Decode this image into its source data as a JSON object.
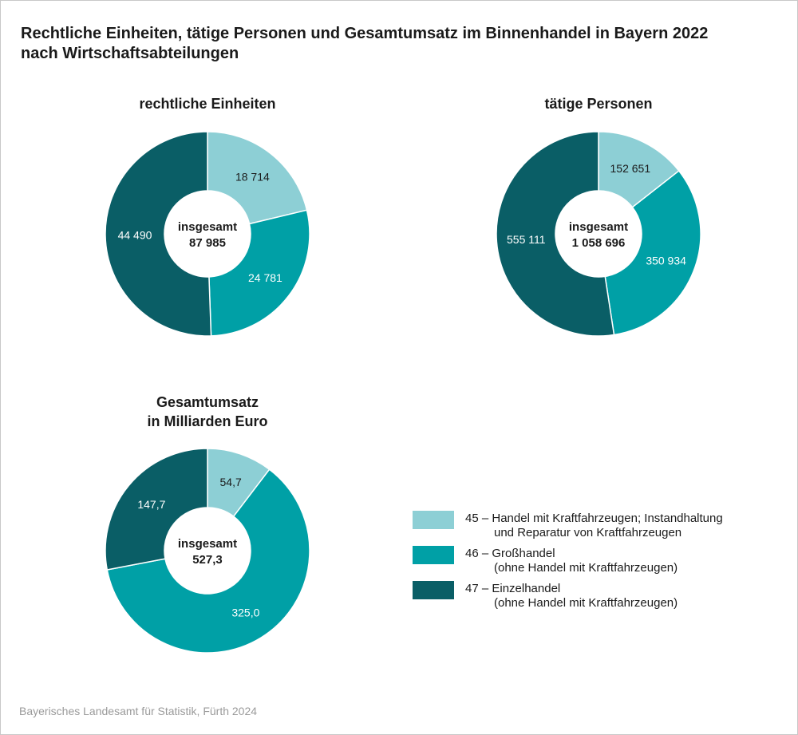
{
  "title": {
    "line1": "Rechtliche Einheiten, tätige Personen und Gesamtumsatz im Binnenhandel in Bayern 2022",
    "line2": "nach Wirtschaftsabteilungen"
  },
  "colors": {
    "c45": "#8dcfd5",
    "c46": "#00a0a6",
    "c47": "#0a5e66"
  },
  "chart_data": [
    {
      "type": "pie",
      "title": "rechtliche Einheiten",
      "center_label": "insgesamt",
      "total_label": "87 985",
      "categories": [
        "45",
        "46",
        "47"
      ],
      "values": [
        18714,
        24781,
        44490
      ],
      "value_labels": [
        "18 714",
        "24 781",
        "44 490"
      ]
    },
    {
      "type": "pie",
      "title": "tätige Personen",
      "center_label": "insgesamt",
      "total_label": "1 058 696",
      "categories": [
        "45",
        "46",
        "47"
      ],
      "values": [
        152651,
        350934,
        555111
      ],
      "value_labels": [
        "152 651",
        "350 934",
        "555 111"
      ]
    },
    {
      "type": "pie",
      "title": "Gesamtumsatz",
      "title_line2": "in Milliarden Euro",
      "center_label": "insgesamt",
      "total_label": "527,3",
      "categories": [
        "45",
        "46",
        "47"
      ],
      "values": [
        54.7,
        325.0,
        147.7
      ],
      "value_labels": [
        "54,7",
        "325,0",
        "147,7"
      ]
    }
  ],
  "legend": [
    {
      "key": "c45",
      "line1": "45 – Handel mit Kraftfahrzeugen; Instandhaltung",
      "line2": "und Reparatur von Kraftfahrzeugen"
    },
    {
      "key": "c46",
      "line1": "46 – Großhandel",
      "line2": "(ohne Handel mit Kraftfahrzeugen)"
    },
    {
      "key": "c47",
      "line1": "47 – Einzelhandel",
      "line2": "(ohne Handel mit Kraftfahrzeugen)"
    }
  ],
  "source": "Bayerisches Landesamt für Statistik, Fürth 2024"
}
